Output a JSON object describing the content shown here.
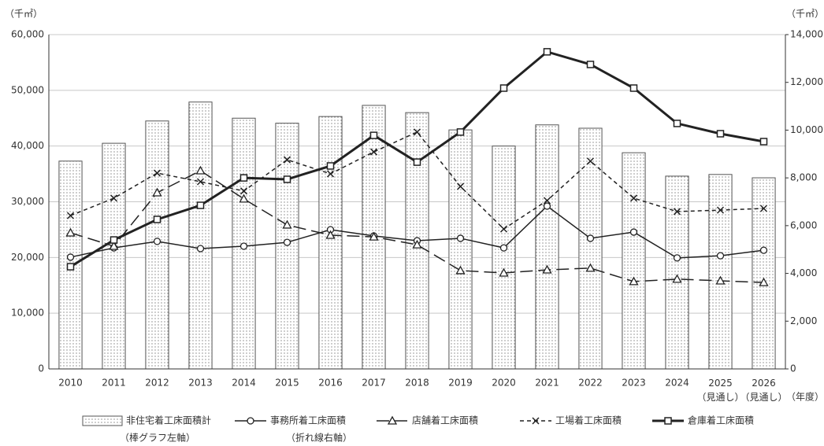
{
  "chart_data": {
    "type": "combo",
    "y_unit_label": "（千㎡）",
    "y2_unit_label": "（千㎡）",
    "x_unit_label": "（年度）",
    "categories": [
      "2010",
      "2011",
      "2012",
      "2013",
      "2014",
      "2015",
      "2016",
      "2017",
      "2018",
      "2019",
      "2020",
      "2021",
      "2022",
      "2023",
      "2024",
      "2025\n（見通し）",
      "2026\n（見通し）"
    ],
    "ylim": [
      0,
      60000
    ],
    "yticks": [
      {
        "value": 0,
        "label": "0"
      },
      {
        "value": 10000,
        "label": "10,000"
      },
      {
        "value": 20000,
        "label": "20,000"
      },
      {
        "value": 30000,
        "label": "30,000"
      },
      {
        "value": 40000,
        "label": "40,000"
      },
      {
        "value": 50000,
        "label": "50,000"
      },
      {
        "value": 60000,
        "label": "60,000"
      }
    ],
    "y2lim": [
      0,
      14000
    ],
    "y2ticks": [
      {
        "value": 0,
        "label": "0"
      },
      {
        "value": 2000,
        "label": "2,000"
      },
      {
        "value": 4000,
        "label": "4,000"
      },
      {
        "value": 6000,
        "label": "6,000"
      },
      {
        "value": 8000,
        "label": "8,000"
      },
      {
        "value": 10000,
        "label": "10,000"
      },
      {
        "value": 12000,
        "label": "12,000"
      },
      {
        "value": 14000,
        "label": "14,000"
      }
    ],
    "grid": true,
    "bars": {
      "name": "非住宅着工床面積計",
      "note": "（棒グラフ左軸）",
      "color": "#555555",
      "values": [
        37300,
        40500,
        44500,
        47900,
        45000,
        44100,
        45300,
        47300,
        46000,
        42900,
        40000,
        43800,
        43200,
        38800,
        34600,
        34900,
        34300
      ]
    },
    "line_note": "（折れ線右軸）",
    "series": [
      {
        "name": "事務所着工床面積",
        "color": "#222222",
        "axis": "y2",
        "marker": "circle",
        "dash": "solid",
        "values": [
          4680,
          5070,
          5340,
          5040,
          5140,
          5300,
          5830,
          5570,
          5370,
          5470,
          5070,
          6820,
          5470,
          5730,
          4650,
          4740,
          4970
        ]
      },
      {
        "name": "店舗着工床面積",
        "color": "#222222",
        "axis": "y2",
        "marker": "triangle",
        "dash": "long",
        "values": [
          5700,
          5140,
          7380,
          8300,
          7120,
          6030,
          5600,
          5530,
          5200,
          4120,
          4020,
          4150,
          4220,
          3660,
          3760,
          3690,
          3620
        ]
      },
      {
        "name": "工場着工床面積",
        "color": "#222222",
        "axis": "y2",
        "marker": "cross",
        "dash": "short",
        "values": [
          6420,
          7150,
          8200,
          7840,
          7450,
          8760,
          8170,
          9090,
          9920,
          7640,
          5860,
          7050,
          8700,
          7150,
          6590,
          6650,
          6720
        ]
      },
      {
        "name": "倉庫着工床面積",
        "color": "#222222",
        "axis": "y2",
        "marker": "square",
        "dash": "bold",
        "values": [
          4280,
          5400,
          6260,
          6850,
          8000,
          7940,
          8500,
          9780,
          8660,
          9920,
          11760,
          13280,
          12750,
          11760,
          10280,
          9850,
          9520
        ]
      }
    ]
  }
}
